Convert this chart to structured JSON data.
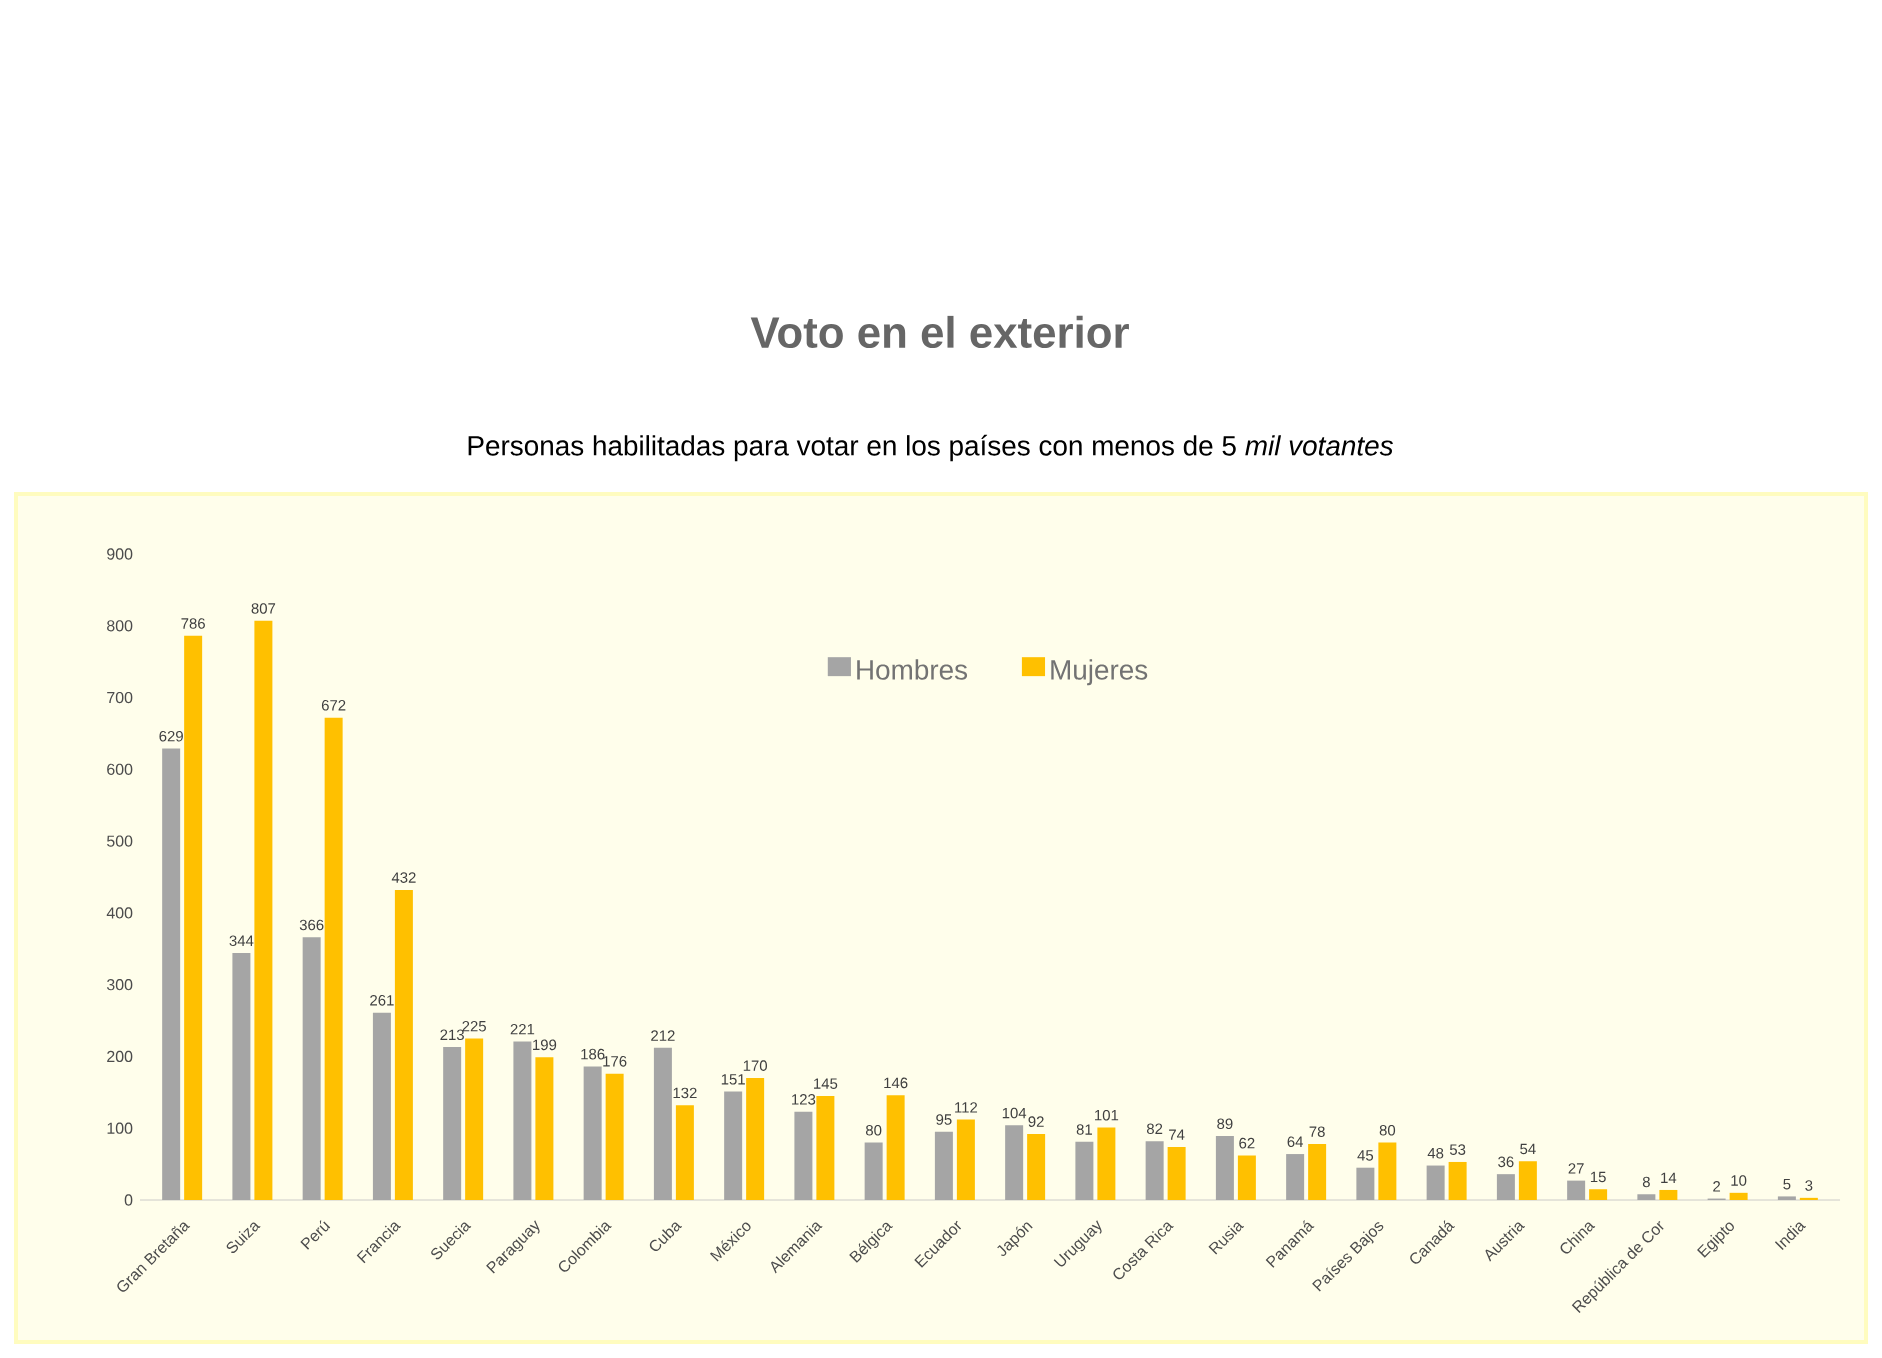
{
  "chart_data": {
    "type": "bar",
    "title": "Voto en el exterior",
    "subtitle": "Personas habilitadas para votar en los países con menos de 5 *mil votantes*",
    "categories": [
      "Gran Bretaña",
      "Suiza",
      "Perú",
      "Francia",
      "Suecia",
      "Paraguay",
      "Colombia",
      "Cuba",
      "México",
      "Alemania",
      "Bélgica",
      "Ecuador",
      "Japón",
      "Uruguay",
      "Costa Rica",
      "Rusia",
      "Panamá",
      "Países Bajos",
      "Canadá",
      "Austria",
      "China",
      "República de Cor",
      "Egipto",
      "India"
    ],
    "series": [
      {
        "name": "Hombres",
        "color": "#a5a5a5",
        "values": [
          629,
          344,
          366,
          261,
          213,
          221,
          186,
          212,
          151,
          123,
          80,
          95,
          104,
          81,
          82,
          89,
          64,
          45,
          48,
          36,
          27,
          8,
          2,
          5
        ]
      },
      {
        "name": "Mujeres",
        "color": "#ffc000",
        "values": [
          786,
          807,
          672,
          432,
          225,
          199,
          176,
          132,
          170,
          145,
          146,
          112,
          92,
          101,
          74,
          62,
          78,
          80,
          53,
          54,
          15,
          14,
          10,
          3
        ]
      }
    ],
    "ylim": [
      0,
      900
    ],
    "yticks": [
      0,
      100,
      200,
      300,
      400,
      500,
      600,
      700,
      800,
      900
    ],
    "data_labels": true,
    "legend": "top",
    "grid": false
  }
}
